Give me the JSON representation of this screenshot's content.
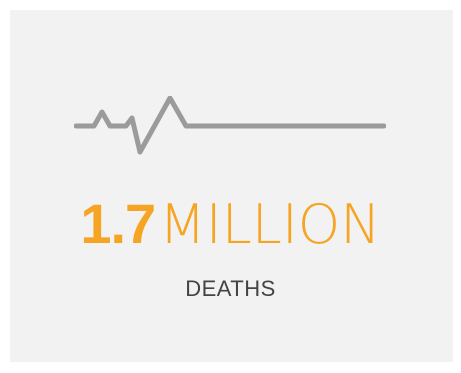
{
  "stat": {
    "number": "1.7",
    "unit": "MILLION",
    "label": "DEATHS"
  },
  "icon": {
    "name": "heartbeat-line-icon",
    "color": "#9b9b9b"
  },
  "colors": {
    "accent": "#f5a523",
    "card_background": "#f2f2f2",
    "caption": "#444444"
  }
}
